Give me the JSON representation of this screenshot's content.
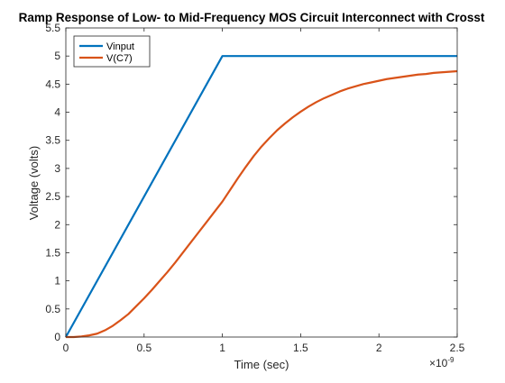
{
  "chart_data": {
    "type": "line",
    "title": "Ramp Response of Low- to Mid-Frequency MOS Circuit Interconnect with Crosst",
    "xlabel": "Time (sec)",
    "ylabel": "Voltage (volts)",
    "x_exponent_label": "×10",
    "x_exponent_power": "-9",
    "xlim": [
      0,
      2.5
    ],
    "ylim": [
      0,
      5.5
    ],
    "x_unit_scale": 1e-09,
    "xticks": [
      0,
      0.5,
      1,
      1.5,
      2,
      2.5
    ],
    "xtick_labels": [
      "0",
      "0.5",
      "1",
      "1.5",
      "2",
      "2.5"
    ],
    "yticks": [
      0,
      0.5,
      1,
      1.5,
      2,
      2.5,
      3,
      3.5,
      4,
      4.5,
      5,
      5.5
    ],
    "ytick_labels": [
      "0",
      "0.5",
      "1",
      "1.5",
      "2",
      "2.5",
      "3",
      "3.5",
      "4",
      "4.5",
      "5",
      "5.5"
    ],
    "grid": false,
    "legend_position": "top-left",
    "series": [
      {
        "name": "Vinput",
        "color": "#0072BD",
        "x": [
          0,
          1,
          2.5
        ],
        "y": [
          0,
          5,
          5
        ]
      },
      {
        "name": "V(C7)",
        "color": "#D95319",
        "x": [
          0,
          0.05,
          0.1,
          0.15,
          0.2,
          0.25,
          0.3,
          0.35,
          0.4,
          0.45,
          0.5,
          0.55,
          0.6,
          0.65,
          0.7,
          0.75,
          0.8,
          0.85,
          0.9,
          0.95,
          1.0,
          1.05,
          1.1,
          1.15,
          1.2,
          1.25,
          1.3,
          1.35,
          1.4,
          1.45,
          1.5,
          1.55,
          1.6,
          1.65,
          1.7,
          1.75,
          1.8,
          1.85,
          1.9,
          1.95,
          2.0,
          2.05,
          2.1,
          2.15,
          2.2,
          2.25,
          2.3,
          2.35,
          2.4,
          2.45,
          2.5
        ],
        "y": [
          0,
          0.0,
          0.01,
          0.03,
          0.06,
          0.12,
          0.2,
          0.3,
          0.41,
          0.55,
          0.69,
          0.84,
          1.0,
          1.16,
          1.33,
          1.51,
          1.69,
          1.87,
          2.05,
          2.23,
          2.41,
          2.62,
          2.83,
          3.03,
          3.22,
          3.39,
          3.54,
          3.68,
          3.8,
          3.91,
          4.01,
          4.1,
          4.18,
          4.25,
          4.31,
          4.37,
          4.42,
          4.46,
          4.5,
          4.53,
          4.56,
          4.59,
          4.61,
          4.63,
          4.65,
          4.67,
          4.68,
          4.7,
          4.71,
          4.72,
          4.73
        ]
      }
    ]
  }
}
